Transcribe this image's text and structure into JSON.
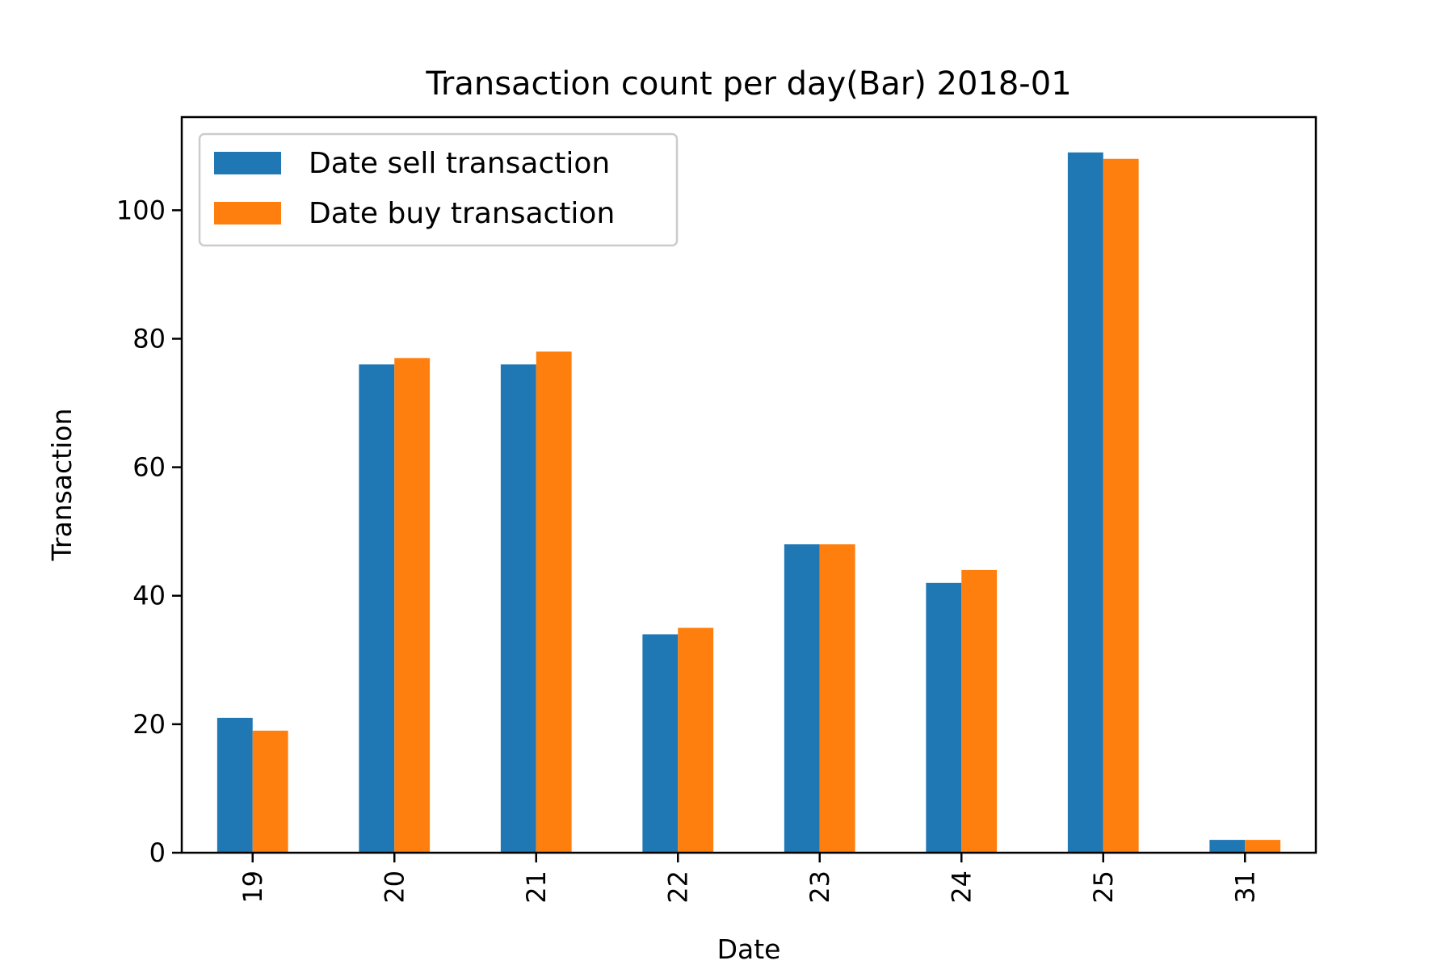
{
  "chart_data": {
    "type": "bar",
    "title": "Transaction count per day(Bar) 2018-01",
    "xlabel": "Date",
    "ylabel": "Transaction",
    "categories": [
      "19",
      "20",
      "21",
      "22",
      "23",
      "24",
      "25",
      "31"
    ],
    "series": [
      {
        "name": "Date sell transaction",
        "color": "#1f77b4",
        "values": [
          21,
          76,
          76,
          34,
          48,
          42,
          109,
          2
        ]
      },
      {
        "name": "Date buy transaction",
        "color": "#ff7f0e",
        "values": [
          19,
          77,
          78,
          35,
          48,
          44,
          108,
          2
        ]
      }
    ],
    "yticks": [
      0,
      20,
      40,
      60,
      80,
      100
    ],
    "ylim": [
      0,
      114.5
    ],
    "grid": false,
    "legend_position": "top-left",
    "xtick_rotation": "vertical"
  }
}
